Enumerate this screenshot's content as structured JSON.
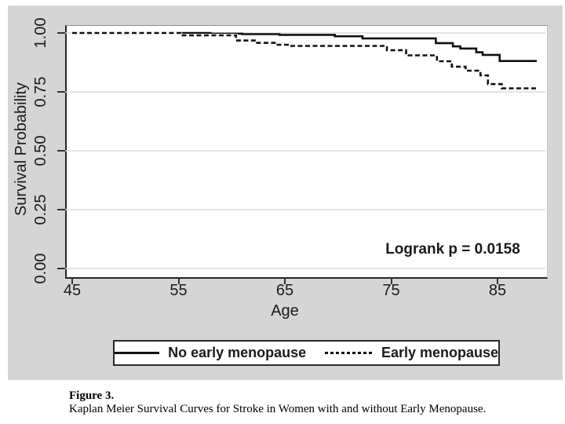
{
  "colors": {
    "panel_bg": "#d5d5d5",
    "plot_bg": "#ffffff",
    "grid": "#dadada",
    "axis": "#262626",
    "line": "#111111"
  },
  "chart_data": {
    "type": "line",
    "subtype": "kaplan-meier-step",
    "title": "",
    "xlabel": "Age",
    "ylabel": "Survival Probability",
    "annotation": "Logrank p = 0.0158",
    "grid": true,
    "legend_position": "bottom",
    "xlim": [
      44.3,
      89.5
    ],
    "ylim": [
      -0.033,
      1.033
    ],
    "x_tick_values": [
      45,
      55,
      65,
      75,
      85
    ],
    "x_tick_labels": [
      "45",
      "55",
      "65",
      "75",
      "85"
    ],
    "y_tick_values": [
      0.0,
      0.25,
      0.5,
      0.75,
      1.0
    ],
    "y_tick_labels": [
      "0.00",
      "0.25",
      "0.50",
      "0.75",
      "1.00"
    ],
    "series": [
      {
        "name": "No early menopause",
        "line_style": "solid",
        "color": "#111111",
        "points": [
          [
            45,
            1.0
          ],
          [
            58,
            0.997
          ],
          [
            61,
            0.995
          ],
          [
            64.5,
            0.992
          ],
          [
            69.7,
            0.986
          ],
          [
            72.3,
            0.977
          ],
          [
            79.2,
            0.957
          ],
          [
            80.8,
            0.943
          ],
          [
            81.5,
            0.934
          ],
          [
            83.0,
            0.918
          ],
          [
            83.6,
            0.907
          ],
          [
            85.2,
            0.881
          ],
          [
            88.7,
            0.881
          ]
        ]
      },
      {
        "name": "Early menopause",
        "line_style": "dashed",
        "color": "#111111",
        "points": [
          [
            45,
            1.0
          ],
          [
            55.2,
            0.99
          ],
          [
            60.4,
            0.968
          ],
          [
            62.3,
            0.958
          ],
          [
            64.2,
            0.95
          ],
          [
            65.5,
            0.945
          ],
          [
            74.6,
            0.927
          ],
          [
            76.4,
            0.905
          ],
          [
            79.3,
            0.88
          ],
          [
            80.7,
            0.857
          ],
          [
            82.0,
            0.84
          ],
          [
            83.4,
            0.82
          ],
          [
            84.1,
            0.783
          ],
          [
            85.4,
            0.765
          ],
          [
            88.8,
            0.765
          ]
        ]
      }
    ]
  },
  "caption": {
    "label": "Figure 3.",
    "text": "Kaplan Meier Survival Curves for Stroke in Women with and without Early Menopause."
  }
}
